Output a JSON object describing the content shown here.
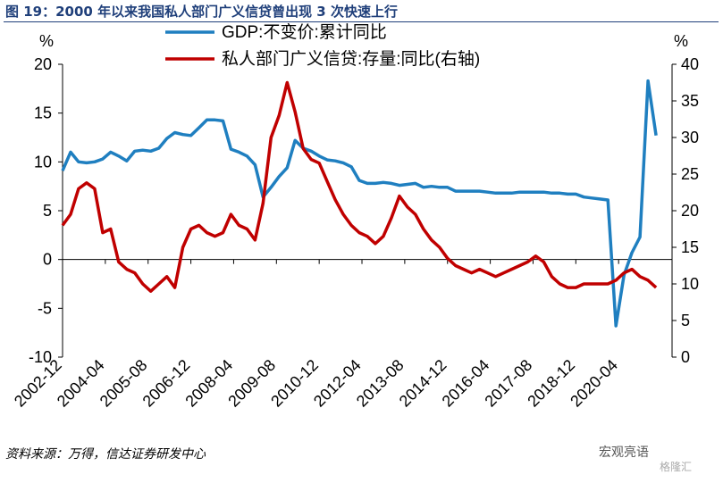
{
  "figure_title": "图 19：2000 年以来我国私人部门广义信贷曾出现 3 次快速上行",
  "source": "资料来源：万得，信达证券研发中心",
  "watermark": "宏观亮语",
  "watermark_sub": "格隆汇",
  "chart_data": {
    "type": "line",
    "y_left_unit": "%",
    "y_right_unit": "%",
    "y_left_ticks": [
      -10,
      -5,
      0,
      5,
      10,
      15,
      20
    ],
    "y_right_ticks": [
      0,
      5,
      10,
      15,
      20,
      25,
      30,
      35,
      40
    ],
    "ylim_left": [
      -10,
      20
    ],
    "ylim_right": [
      0,
      40
    ],
    "xlim": [
      "2002-12",
      "2021-12"
    ],
    "x_tick_labels": [
      "2002-12",
      "2004-04",
      "2005-08",
      "2006-12",
      "2008-04",
      "2009-08",
      "2010-12",
      "2012-04",
      "2013-08",
      "2014-12",
      "2016-04",
      "2017-08",
      "2018-12",
      "2020-04"
    ],
    "grid": false,
    "legend_position": "top-center",
    "series": [
      {
        "name": "GDP:不变价:累计同比",
        "axis": "left",
        "color": "#1f7fc0",
        "points": [
          [
            "2002-12",
            9.1
          ],
          [
            "2003-03",
            11.0
          ],
          [
            "2003-06",
            10.0
          ],
          [
            "2003-09",
            9.9
          ],
          [
            "2003-12",
            10.0
          ],
          [
            "2004-03",
            10.3
          ],
          [
            "2004-06",
            11.0
          ],
          [
            "2004-09",
            10.6
          ],
          [
            "2004-12",
            10.1
          ],
          [
            "2005-03",
            11.1
          ],
          [
            "2005-06",
            11.2
          ],
          [
            "2005-09",
            11.1
          ],
          [
            "2005-12",
            11.4
          ],
          [
            "2006-03",
            12.4
          ],
          [
            "2006-06",
            13.0
          ],
          [
            "2006-09",
            12.8
          ],
          [
            "2006-12",
            12.7
          ],
          [
            "2007-03",
            13.5
          ],
          [
            "2007-06",
            14.3
          ],
          [
            "2007-09",
            14.3
          ],
          [
            "2007-12",
            14.2
          ],
          [
            "2008-03",
            11.3
          ],
          [
            "2008-06",
            11.0
          ],
          [
            "2008-09",
            10.6
          ],
          [
            "2008-12",
            9.7
          ],
          [
            "2009-03",
            6.4
          ],
          [
            "2009-06",
            7.4
          ],
          [
            "2009-09",
            8.5
          ],
          [
            "2009-12",
            9.4
          ],
          [
            "2010-03",
            12.2
          ],
          [
            "2010-06",
            11.4
          ],
          [
            "2010-09",
            11.1
          ],
          [
            "2010-12",
            10.6
          ],
          [
            "2011-03",
            10.2
          ],
          [
            "2011-06",
            10.1
          ],
          [
            "2011-09",
            9.9
          ],
          [
            "2011-12",
            9.5
          ],
          [
            "2012-03",
            8.1
          ],
          [
            "2012-06",
            7.8
          ],
          [
            "2012-09",
            7.8
          ],
          [
            "2012-12",
            7.9
          ],
          [
            "2013-03",
            7.8
          ],
          [
            "2013-06",
            7.6
          ],
          [
            "2013-09",
            7.7
          ],
          [
            "2013-12",
            7.8
          ],
          [
            "2014-03",
            7.4
          ],
          [
            "2014-06",
            7.5
          ],
          [
            "2014-09",
            7.4
          ],
          [
            "2014-12",
            7.4
          ],
          [
            "2015-03",
            7.0
          ],
          [
            "2015-06",
            7.0
          ],
          [
            "2015-09",
            7.0
          ],
          [
            "2015-12",
            7.0
          ],
          [
            "2016-03",
            6.9
          ],
          [
            "2016-06",
            6.8
          ],
          [
            "2016-09",
            6.8
          ],
          [
            "2016-12",
            6.8
          ],
          [
            "2017-03",
            6.9
          ],
          [
            "2017-06",
            6.9
          ],
          [
            "2017-09",
            6.9
          ],
          [
            "2017-12",
            6.9
          ],
          [
            "2018-03",
            6.8
          ],
          [
            "2018-06",
            6.8
          ],
          [
            "2018-09",
            6.7
          ],
          [
            "2018-12",
            6.7
          ],
          [
            "2019-03",
            6.4
          ],
          [
            "2019-06",
            6.3
          ],
          [
            "2019-09",
            6.2
          ],
          [
            "2019-12",
            6.1
          ],
          [
            "2020-03",
            -6.8
          ],
          [
            "2020-06",
            -1.6
          ],
          [
            "2020-09",
            0.7
          ],
          [
            "2020-12",
            2.3
          ],
          [
            "2021-03",
            18.3
          ],
          [
            "2021-06",
            12.7
          ]
        ]
      },
      {
        "name": "私人部门广义信贷:存量:同比(右轴)",
        "axis": "right",
        "color": "#c00000",
        "points": [
          [
            "2002-12",
            18.0
          ],
          [
            "2003-03",
            19.5
          ],
          [
            "2003-06",
            23.0
          ],
          [
            "2003-09",
            23.8
          ],
          [
            "2003-12",
            23.0
          ],
          [
            "2004-03",
            17.0
          ],
          [
            "2004-06",
            17.5
          ],
          [
            "2004-09",
            13.0
          ],
          [
            "2004-12",
            12.0
          ],
          [
            "2005-03",
            11.5
          ],
          [
            "2005-06",
            10.0
          ],
          [
            "2005-09",
            9.0
          ],
          [
            "2005-12",
            10.0
          ],
          [
            "2006-03",
            11.0
          ],
          [
            "2006-06",
            9.5
          ],
          [
            "2006-09",
            15.0
          ],
          [
            "2006-12",
            17.5
          ],
          [
            "2007-03",
            18.0
          ],
          [
            "2007-06",
            17.0
          ],
          [
            "2007-09",
            16.5
          ],
          [
            "2007-12",
            17.0
          ],
          [
            "2008-03",
            19.5
          ],
          [
            "2008-06",
            18.0
          ],
          [
            "2008-09",
            17.5
          ],
          [
            "2008-12",
            16.0
          ],
          [
            "2009-03",
            21.0
          ],
          [
            "2009-06",
            30.0
          ],
          [
            "2009-09",
            33.0
          ],
          [
            "2009-12",
            37.5
          ],
          [
            "2010-03",
            33.5
          ],
          [
            "2010-06",
            28.5
          ],
          [
            "2010-09",
            27.0
          ],
          [
            "2010-12",
            26.5
          ],
          [
            "2011-03",
            24.0
          ],
          [
            "2011-06",
            21.5
          ],
          [
            "2011-09",
            19.5
          ],
          [
            "2011-12",
            18.0
          ],
          [
            "2012-03",
            17.0
          ],
          [
            "2012-06",
            16.5
          ],
          [
            "2012-09",
            15.5
          ],
          [
            "2012-12",
            16.5
          ],
          [
            "2013-03",
            19.0
          ],
          [
            "2013-06",
            22.0
          ],
          [
            "2013-09",
            20.5
          ],
          [
            "2013-12",
            19.5
          ],
          [
            "2014-03",
            17.5
          ],
          [
            "2014-06",
            16.0
          ],
          [
            "2014-09",
            15.0
          ],
          [
            "2014-12",
            13.5
          ],
          [
            "2015-03",
            12.5
          ],
          [
            "2015-06",
            12.0
          ],
          [
            "2015-09",
            11.5
          ],
          [
            "2015-12",
            12.0
          ],
          [
            "2016-03",
            11.5
          ],
          [
            "2016-06",
            11.0
          ],
          [
            "2016-09",
            11.5
          ],
          [
            "2016-12",
            12.0
          ],
          [
            "2017-03",
            12.5
          ],
          [
            "2017-06",
            13.0
          ],
          [
            "2017-09",
            13.8
          ],
          [
            "2017-12",
            13.0
          ],
          [
            "2018-03",
            11.0
          ],
          [
            "2018-06",
            10.0
          ],
          [
            "2018-09",
            9.5
          ],
          [
            "2018-12",
            9.5
          ],
          [
            "2019-03",
            10.0
          ],
          [
            "2019-06",
            10.0
          ],
          [
            "2019-09",
            10.0
          ],
          [
            "2019-12",
            10.0
          ],
          [
            "2020-03",
            10.5
          ],
          [
            "2020-06",
            11.5
          ],
          [
            "2020-09",
            12.0
          ],
          [
            "2020-12",
            11.0
          ],
          [
            "2021-03",
            10.5
          ],
          [
            "2021-06",
            9.5
          ]
        ]
      }
    ]
  }
}
